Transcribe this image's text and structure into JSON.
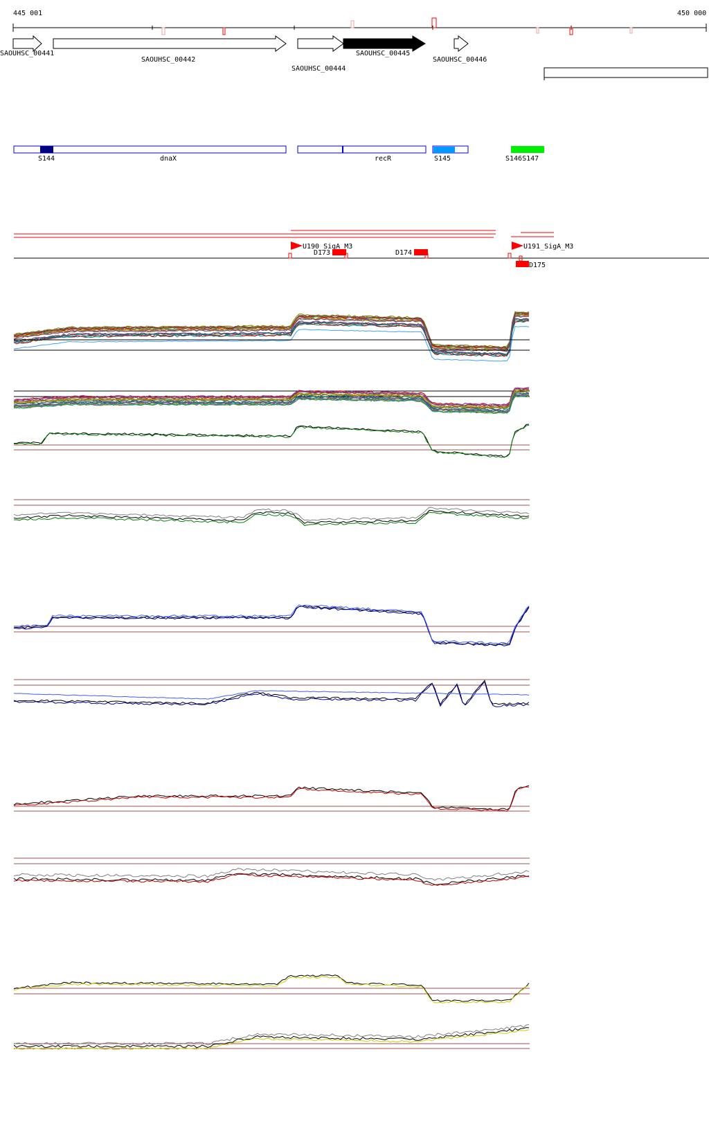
{
  "coords": {
    "start": "445 001",
    "end": "450 000"
  },
  "genes": [
    {
      "label": "SAOUHSC_00441",
      "filled": false
    },
    {
      "label": "SAOUHSC_00442",
      "filled": false
    },
    {
      "label": "SAOUHSC_00444",
      "filled": false
    },
    {
      "label": "SAOUHSC_00445",
      "filled": true
    },
    {
      "label": "SAOUHSC_00446",
      "filled": false
    }
  ],
  "features": [
    {
      "label": "S144",
      "color": "#000080"
    },
    {
      "label": "dnaX",
      "color": "#0000cc"
    },
    {
      "label": "recR",
      "color": "#0000cc"
    },
    {
      "label": "S145",
      "color": "#0099ff"
    },
    {
      "label": "S146S147",
      "color": "#00ee00"
    }
  ],
  "regulatory": [
    {
      "label": "U190_SigA_M3"
    },
    {
      "label": "D173"
    },
    {
      "label": "D174"
    },
    {
      "label": "U191_SigA_M3"
    },
    {
      "label": "D175"
    }
  ],
  "colors": {
    "red": "#ff0000",
    "guide": "#a05050",
    "green": "#008000",
    "blue": "#0000a0",
    "lightblue": "#4060ff",
    "darkred": "#cc0000",
    "yellow": "#cccc00",
    "gray": "#808080"
  }
}
